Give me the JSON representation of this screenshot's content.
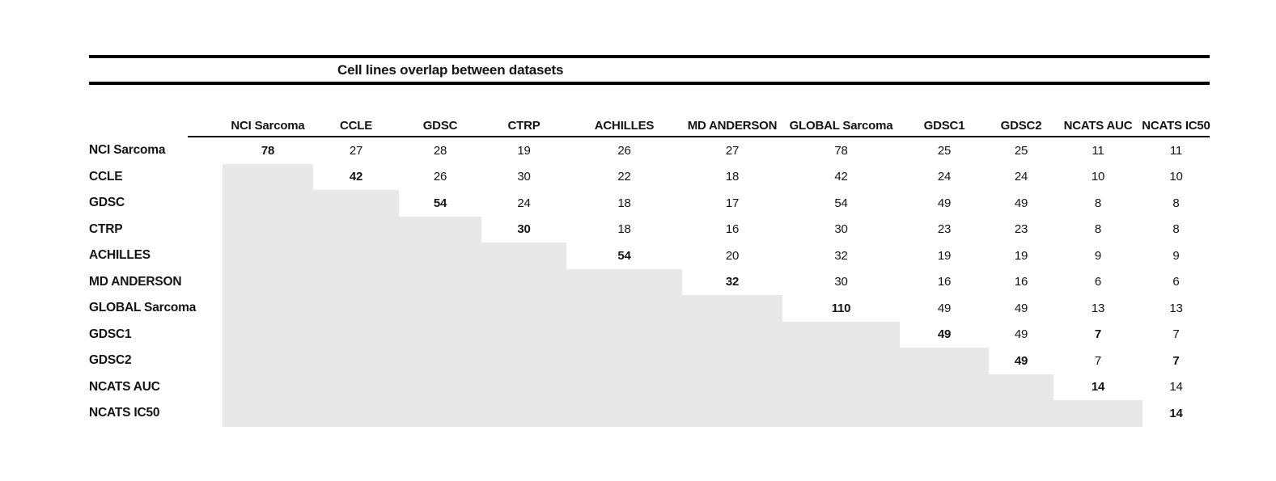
{
  "figure": {
    "title": "Cell lines overlap between datasets"
  },
  "chart_data": {
    "type": "table",
    "title": "Cell lines overlap between datasets",
    "description": "Upper-triangular matrix of overlapping cell line counts between datasets; lower triangle is shaded gray; diagonal shows each dataset's own cell line count in bold.",
    "columns": [
      "NCI Sarcoma",
      "CCLE",
      "GDSC",
      "CTRP",
      "ACHILLES",
      "MD ANDERSON",
      "GLOBAL Sarcoma",
      "GDSC1",
      "GDSC2",
      "NCATS AUC",
      "NCATS IC50"
    ],
    "rows": [
      "NCI Sarcoma",
      "CCLE",
      "GDSC",
      "CTRP",
      "ACHILLES",
      "MD ANDERSON",
      "GLOBAL Sarcoma",
      "GDSC1",
      "GDSC2",
      "NCATS AUC",
      "NCATS IC50"
    ],
    "matrix": [
      [
        78,
        27,
        28,
        19,
        26,
        27,
        78,
        25,
        25,
        11,
        11
      ],
      [
        null,
        42,
        26,
        30,
        22,
        18,
        42,
        24,
        24,
        10,
        10
      ],
      [
        null,
        null,
        54,
        24,
        18,
        17,
        54,
        49,
        49,
        8,
        8
      ],
      [
        null,
        null,
        null,
        30,
        18,
        16,
        30,
        23,
        23,
        8,
        8
      ],
      [
        null,
        null,
        null,
        null,
        54,
        20,
        32,
        19,
        19,
        9,
        9
      ],
      [
        null,
        null,
        null,
        null,
        null,
        32,
        30,
        16,
        16,
        6,
        6
      ],
      [
        null,
        null,
        null,
        null,
        null,
        null,
        110,
        49,
        49,
        13,
        13
      ],
      [
        null,
        null,
        null,
        null,
        null,
        null,
        null,
        49,
        49,
        7,
        7
      ],
      [
        null,
        null,
        null,
        null,
        null,
        null,
        null,
        null,
        49,
        7,
        7
      ],
      [
        null,
        null,
        null,
        null,
        null,
        null,
        null,
        null,
        null,
        14,
        14
      ],
      [
        null,
        null,
        null,
        null,
        null,
        null,
        null,
        null,
        null,
        null,
        14
      ]
    ],
    "bold_cells": [
      [
        0,
        0
      ],
      [
        1,
        1
      ],
      [
        2,
        2
      ],
      [
        3,
        3
      ],
      [
        4,
        4
      ],
      [
        5,
        5
      ],
      [
        6,
        6
      ],
      [
        7,
        7
      ],
      [
        8,
        8
      ],
      [
        9,
        9
      ],
      [
        10,
        10
      ],
      [
        7,
        9
      ],
      [
        8,
        10
      ]
    ],
    "shaded_region": "below-diagonal",
    "shade_color": "#e8e8e8",
    "layout": {
      "grid": "off",
      "legend": "none",
      "text_color": "#141414",
      "rule_color": "#000000"
    }
  }
}
